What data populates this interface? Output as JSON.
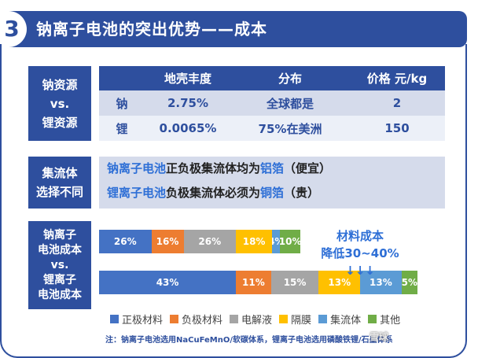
{
  "header": {
    "number": "3",
    "title": "钠离子电池的突出优势——成本"
  },
  "resources": {
    "label_line1": "钠资源",
    "label_line2": "vs.",
    "label_line3": "锂资源",
    "columns": [
      "",
      "地壳丰度",
      "分布",
      "价格 元/kg"
    ],
    "rows": [
      {
        "element": "钠",
        "abundance": "2.75%",
        "distribution": "全球都是",
        "price": "2"
      },
      {
        "element": "锂",
        "abundance": "0.0065%",
        "distribution": "75%在美洲",
        "price": "150"
      }
    ]
  },
  "collector": {
    "label_line1": "集流体",
    "label_line2": "选择不同",
    "line1": {
      "subject": "钠离子电池",
      "middle": "正负极集流体均为",
      "material": "铝箔",
      "note": "（便宜）"
    },
    "line2": {
      "subject": "锂离子电池",
      "middle": "负极集流体必须为",
      "material": "铜箔",
      "note": "（贵）"
    }
  },
  "cost": {
    "label_line1": "钠离子",
    "label_line2": "电池成本",
    "label_line3": "vs.",
    "label_line4": "锂离子",
    "label_line5": "电池成本",
    "note_line1": "材料成本",
    "note_line2": "降低30~40% ↓↓↓",
    "colors": {
      "cathode": "#4472c4",
      "anode": "#ed7d31",
      "electrolyte": "#a5a5a5",
      "separator": "#ffc000",
      "collector": "#5b9bd5",
      "other": "#70ad47"
    },
    "sodium_bar": [
      {
        "key": "cathode",
        "value": 26,
        "label": "26%"
      },
      {
        "key": "anode",
        "value": 16,
        "label": "16%"
      },
      {
        "key": "electrolyte",
        "value": 26,
        "label": "26%"
      },
      {
        "key": "separator",
        "value": 18,
        "label": "18%"
      },
      {
        "key": "collector",
        "value": 4,
        "label": "4%"
      },
      {
        "key": "other",
        "value": 10,
        "label": "10%"
      }
    ],
    "lithium_bar": [
      {
        "key": "cathode",
        "value": 43,
        "label": "43%"
      },
      {
        "key": "anode",
        "value": 11,
        "label": "11%"
      },
      {
        "key": "electrolyte",
        "value": 15,
        "label": "15%"
      },
      {
        "key": "separator",
        "value": 13,
        "label": "13%"
      },
      {
        "key": "collector",
        "value": 13,
        "label": "13%"
      },
      {
        "key": "other",
        "value": 5,
        "label": "5%"
      }
    ],
    "legend": [
      {
        "key": "cathode",
        "label": "正极材料"
      },
      {
        "key": "anode",
        "label": "负极材料"
      },
      {
        "key": "electrolyte",
        "label": "电解液"
      },
      {
        "key": "separator",
        "label": "隔膜"
      },
      {
        "key": "collector",
        "label": "集流体"
      },
      {
        "key": "other",
        "label": "其他"
      }
    ]
  },
  "footnote": "注：钠离子电池选用NaCuFeMnO/软碳体系，锂离子电池选用磷酸铁锂/石墨体系",
  "watermark": "雪球"
}
